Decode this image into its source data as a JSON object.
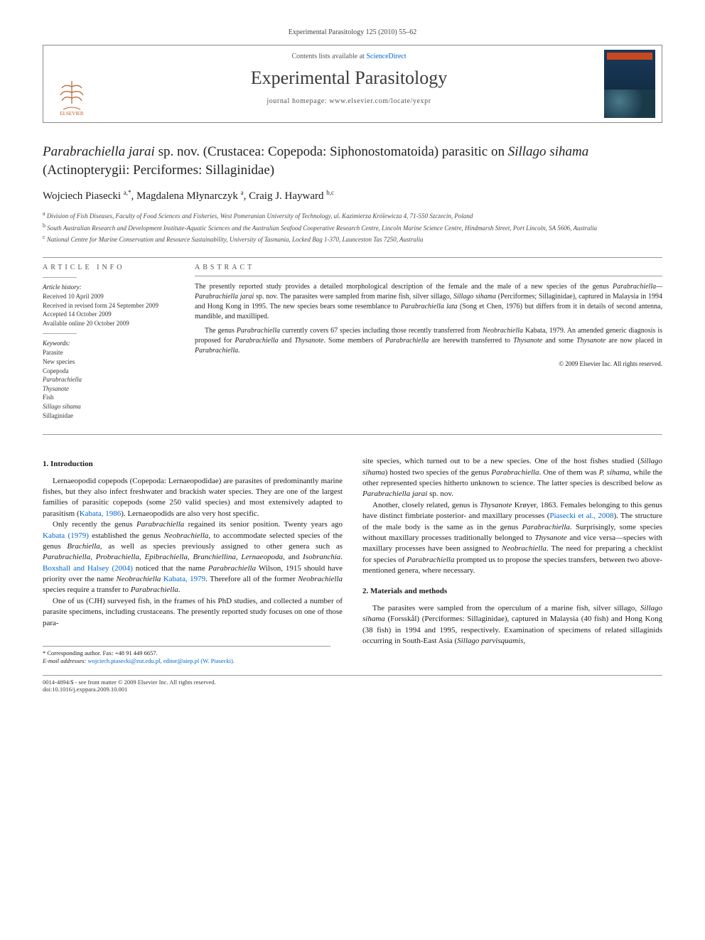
{
  "journal_ref": "Experimental Parasitology 125 (2010) 55–62",
  "header": {
    "contents_pre": "Contents lists available at ",
    "contents_link": "ScienceDirect",
    "journal_name": "Experimental Parasitology",
    "homepage_label": "journal homepage: www.elsevier.com/locate/yexpr",
    "publisher": "ELSEVIER"
  },
  "title": {
    "html": "<span class='ital'>Parabrachiella jarai</span> sp. nov. (Crustacea: Copepoda: Siphonostomatoida) parasitic on <span class='ital'>Sillago sihama</span> (Actinopterygii: Perciformes: Sillaginidae)"
  },
  "authors": {
    "list": "Wojciech Piasecki <sup>a,*</sup>, Magdalena Młynarczyk <sup>a</sup>, Craig J. Hayward <sup>b,c</sup>"
  },
  "affiliations": [
    "<sup>a</sup> Division of Fish Diseases, Faculty of Food Sciences and Fisheries, West Pomeranian University of Technology, ul. Kazimierza Królewicza 4, 71-550 Szczecin, Poland",
    "<sup>b</sup> South Australian Research and Development Institute-Aquatic Sciences and the Australian Seafood Cooperative Research Centre, Lincoln Marine Science Centre, Hindmarsh Street, Port Lincoln, SA 5606, Australia",
    "<sup>c</sup> National Centre for Marine Conservation and Resource Sustainability, University of Tasmania, Locked Bag 1-370, Launceston Tas 7250, Australia"
  ],
  "article_info": {
    "heading": "ARTICLE INFO",
    "history_label": "Article history:",
    "history": [
      "Received 10 April 2009",
      "Received in revised form 24 September 2009",
      "Accepted 14 October 2009",
      "Available online 20 October 2009"
    ],
    "keywords_label": "Keywords:",
    "keywords": [
      "Parasite",
      "New species",
      "Copepoda",
      "<em>Parabrachiella</em>",
      "<em>Thysanote</em>",
      "Fish",
      "<em>Sillago sihama</em>",
      "Sillaginidae"
    ]
  },
  "abstract": {
    "heading": "ABSTRACT",
    "paragraphs": [
      "The presently reported study provides a detailed morphological description of the female and the male of a new species of the genus <em>Parabrachiella—Parabrachiella jarai</em> sp. nov. The parasites were sampled from marine fish, silver sillago, <em>Sillago sihama</em> (Perciformes; Sillaginidae), captured in Malaysia in 1994 and Hong Kong in 1995. The new species bears some resemblance to <em>Parabrachiella lata</em> (Song et Chen, 1976) but differs from it in details of second antenna, mandible, and maxilliped.",
      "The genus <em>Parabrachiella</em> currently covers 67 species including those recently transferred from <em>Neobrachiella</em> <span class='blue'>Kabata, 1979</span>. An amended generic diagnosis is proposed for <em>Parabrachiella</em> and <em>Thysanote</em>. Some members of <em>Parabrachiella</em> are herewith transferred to <em>Thysanote</em> and some <em>Thysanote</em> are now placed in <em>Parabrachiella</em>."
    ],
    "copyright": "© 2009 Elsevier Inc. All rights reserved."
  },
  "sections": {
    "intro_heading": "1. Introduction",
    "intro_paragraphs_left": [
      "Lernaeopodid copepods (Copepoda: Lernaeopodidae) are parasites of predominantly marine fishes, but they also infect freshwater and brackish water species. They are one of the largest families of parasitic copepods (some 250 valid species) and most extensively adapted to parasitism (<span class='blue'>Kabata, 1986</span>). Lernaeopodids are also very host specific.",
      "Only recently the genus <em>Parabrachiella</em> regained its senior position. Twenty years ago <span class='blue'>Kabata (1979)</span> established the genus <em>Neobrachiella</em>, to accommodate selected species of the genus <em>Brachiella</em>, as well as species previously assigned to other genera such as <em>Parabrachiella</em>, <em>Probrachiella</em>, <em>Epibrachiella</em>, <em>Branchiellina</em>, <em>Lernaeopoda</em>, and <em>Isobranchia</em>. <span class='blue'>Boxshall and Halsey (2004)</span> noticed that the name <em>Parabrachiella</em> Wilson, 1915 should have priority over the name <em>Neobrachiella</em> <span class='blue'>Kabata, 1979</span>. Therefore all of the former <em>Neobrachiella</em> species require a transfer to <em>Parabrachiella</em>.",
      "One of us (CJH) surveyed fish, in the frames of his PhD studies, and collected a number of parasite specimens, including crustaceans. The presently reported study focuses on one of those para-"
    ],
    "intro_paragraphs_right": [
      "site species, which turned out to be a new species. One of the host fishes studied (<em>Sillago sihama</em>) hosted two species of the genus <em>Parabrachiella</em>. One of them was <em>P. sihama</em>, while the other represented species hitherto unknown to science. The latter species is described below as <em>Parabrachiella jarai</em> sp. nov.",
      "Another, closely related, genus is <em>Thysanote</em> Krøyer, 1863. Females belonging to this genus have distinct fimbriate posterior- and maxillary processes (<span class='blue'>Piasecki et al., 2008</span>). The structure of the male body is the same as in the genus <em>Parabrachiella</em>. Surprisingly, some species without maxillary processes traditionally belonged to <em>Thysanote</em> and vice versa—species with maxillary processes have been assigned to <em>Neobrachiella</em>. The need for preparing a checklist for species of <em>Parabrachiella</em> prompted us to propose the species transfers, between two above-mentioned genera, where necessary."
    ],
    "methods_heading": "2. Materials and methods",
    "methods_paragraphs": [
      "The parasites were sampled from the operculum of a marine fish, silver sillago, <em>Sillago sihama</em> (Forsskål) (Perciformes: Sillaginidae), captured in Malaysia (40 fish) and Hong Kong (38 fish) in 1994 and 1995, respectively. Examination of specimens of related sillaginids occurring in South-East Asia (<em>Sillago parvisquamis</em>,"
    ]
  },
  "footnote": {
    "corr": "* Corresponding author. Fax: +48 91 449 6657.",
    "email_label": "E-mail addresses:",
    "emails": "wojciech.piasecki@zut.edu.pl, editor@aiep.pl (W. Piasecki)."
  },
  "footer": {
    "left1": "0014-4894/$ - see front matter © 2009 Elsevier Inc. All rights reserved.",
    "left2": "doi:10.1016/j.exppara.2009.10.001"
  },
  "style": {
    "text_color": "#1a1a1a",
    "link_color": "#0066cc",
    "rule_color": "#999",
    "background": "#ffffff",
    "title_fontsize": 19,
    "author_fontsize": 15,
    "body_fontsize": 11,
    "abstract_fontsize": 10,
    "affil_fontsize": 9,
    "journal_name_fontsize": 26
  }
}
